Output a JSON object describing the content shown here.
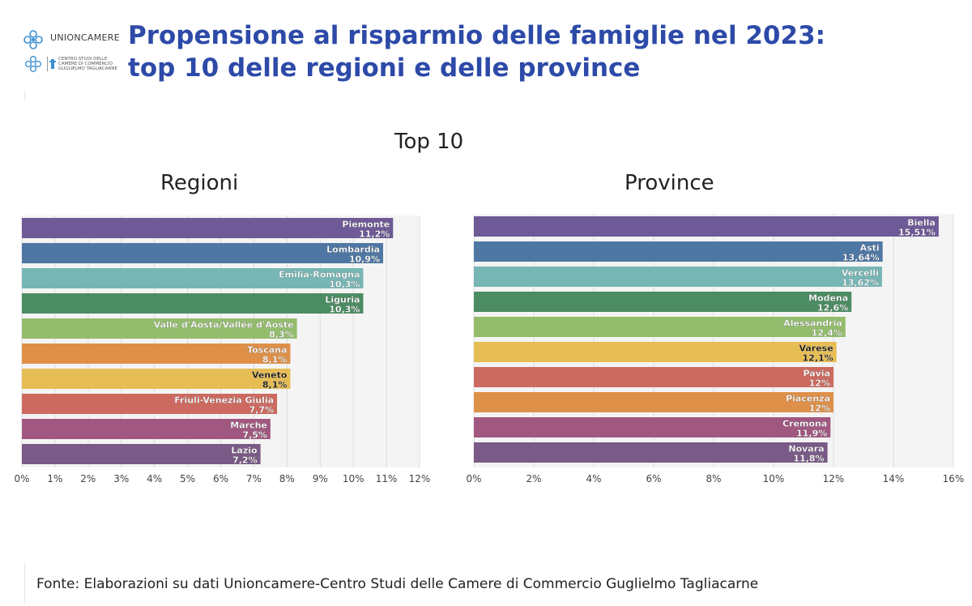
{
  "header": {
    "logo_brand": "UNIONCAMERE",
    "logo_sub_lines": [
      "CENTRO STUDI DELLE",
      "CAMERE DI COMMERCIO",
      "GUGLIELMO TAGLIACARNE"
    ],
    "title_line1": "Propensione al risparmio delle famiglie nel 2023:",
    "title_line2": "top 10 delle regioni e delle province"
  },
  "overall_subtitle": "Top 10",
  "chart_data": [
    {
      "type": "bar",
      "orientation": "horizontal",
      "title": "Regioni",
      "categories": [
        "Piemonte",
        "Lombardia",
        "Emilia-Romagna",
        "Liguria",
        "Valle d'Aosta/Vallée d'Aoste",
        "Toscana",
        "Veneto",
        "Friuli-Venezia Giulia",
        "Marche",
        "Lazio"
      ],
      "values": [
        11.2,
        10.9,
        10.3,
        10.3,
        8.3,
        8.1,
        8.1,
        7.7,
        7.5,
        7.2
      ],
      "value_labels": [
        "11,2%",
        "10,9%",
        "10,3%",
        "10,3%",
        "8,3%",
        "8,1%",
        "8,1%",
        "7,7%",
        "7,5%",
        "7,2%"
      ],
      "colors": [
        "#6e5a96",
        "#4f77a4",
        "#76b6b5",
        "#4c8c62",
        "#93bd6c",
        "#de9049",
        "#e6bd55",
        "#cd6a60",
        "#a05880",
        "#7a5a86"
      ],
      "xlim": [
        0,
        12
      ],
      "xticks": [
        "0%",
        "1%",
        "2%",
        "3%",
        "4%",
        "5%",
        "6%",
        "7%",
        "8%",
        "9%",
        "10%",
        "11%",
        "12%"
      ],
      "grid": true
    },
    {
      "type": "bar",
      "orientation": "horizontal",
      "title": "Province",
      "categories": [
        "Biella",
        "Asti",
        "Vercelli",
        "Modena",
        "Alessandria",
        "Varese",
        "Pavia",
        "Piacenza",
        "Cremona",
        "Novara"
      ],
      "values": [
        15.51,
        13.64,
        13.62,
        12.6,
        12.4,
        12.1,
        12,
        12,
        11.9,
        11.8
      ],
      "value_labels": [
        "15,51%",
        "13,64%",
        "13,62%",
        "12,6%",
        "12,4%",
        "12,1%",
        "12%",
        "12%",
        "11,9%",
        "11,8%"
      ],
      "colors": [
        "#6e5a96",
        "#4f77a4",
        "#76b6b5",
        "#4c8c62",
        "#93bd6c",
        "#e6bd55",
        "#cd6a60",
        "#de9049",
        "#a05880",
        "#7a5a86"
      ],
      "xlim": [
        0,
        16
      ],
      "xticks": [
        "0%",
        "2%",
        "4%",
        "6%",
        "8%",
        "10%",
        "12%",
        "14%",
        "16%"
      ],
      "grid": true
    }
  ],
  "footer": {
    "source": "Fonte: Elaborazioni su dati Unioncamere-Centro Studi delle Camere di Commercio Guglielmo Tagliacarne"
  }
}
